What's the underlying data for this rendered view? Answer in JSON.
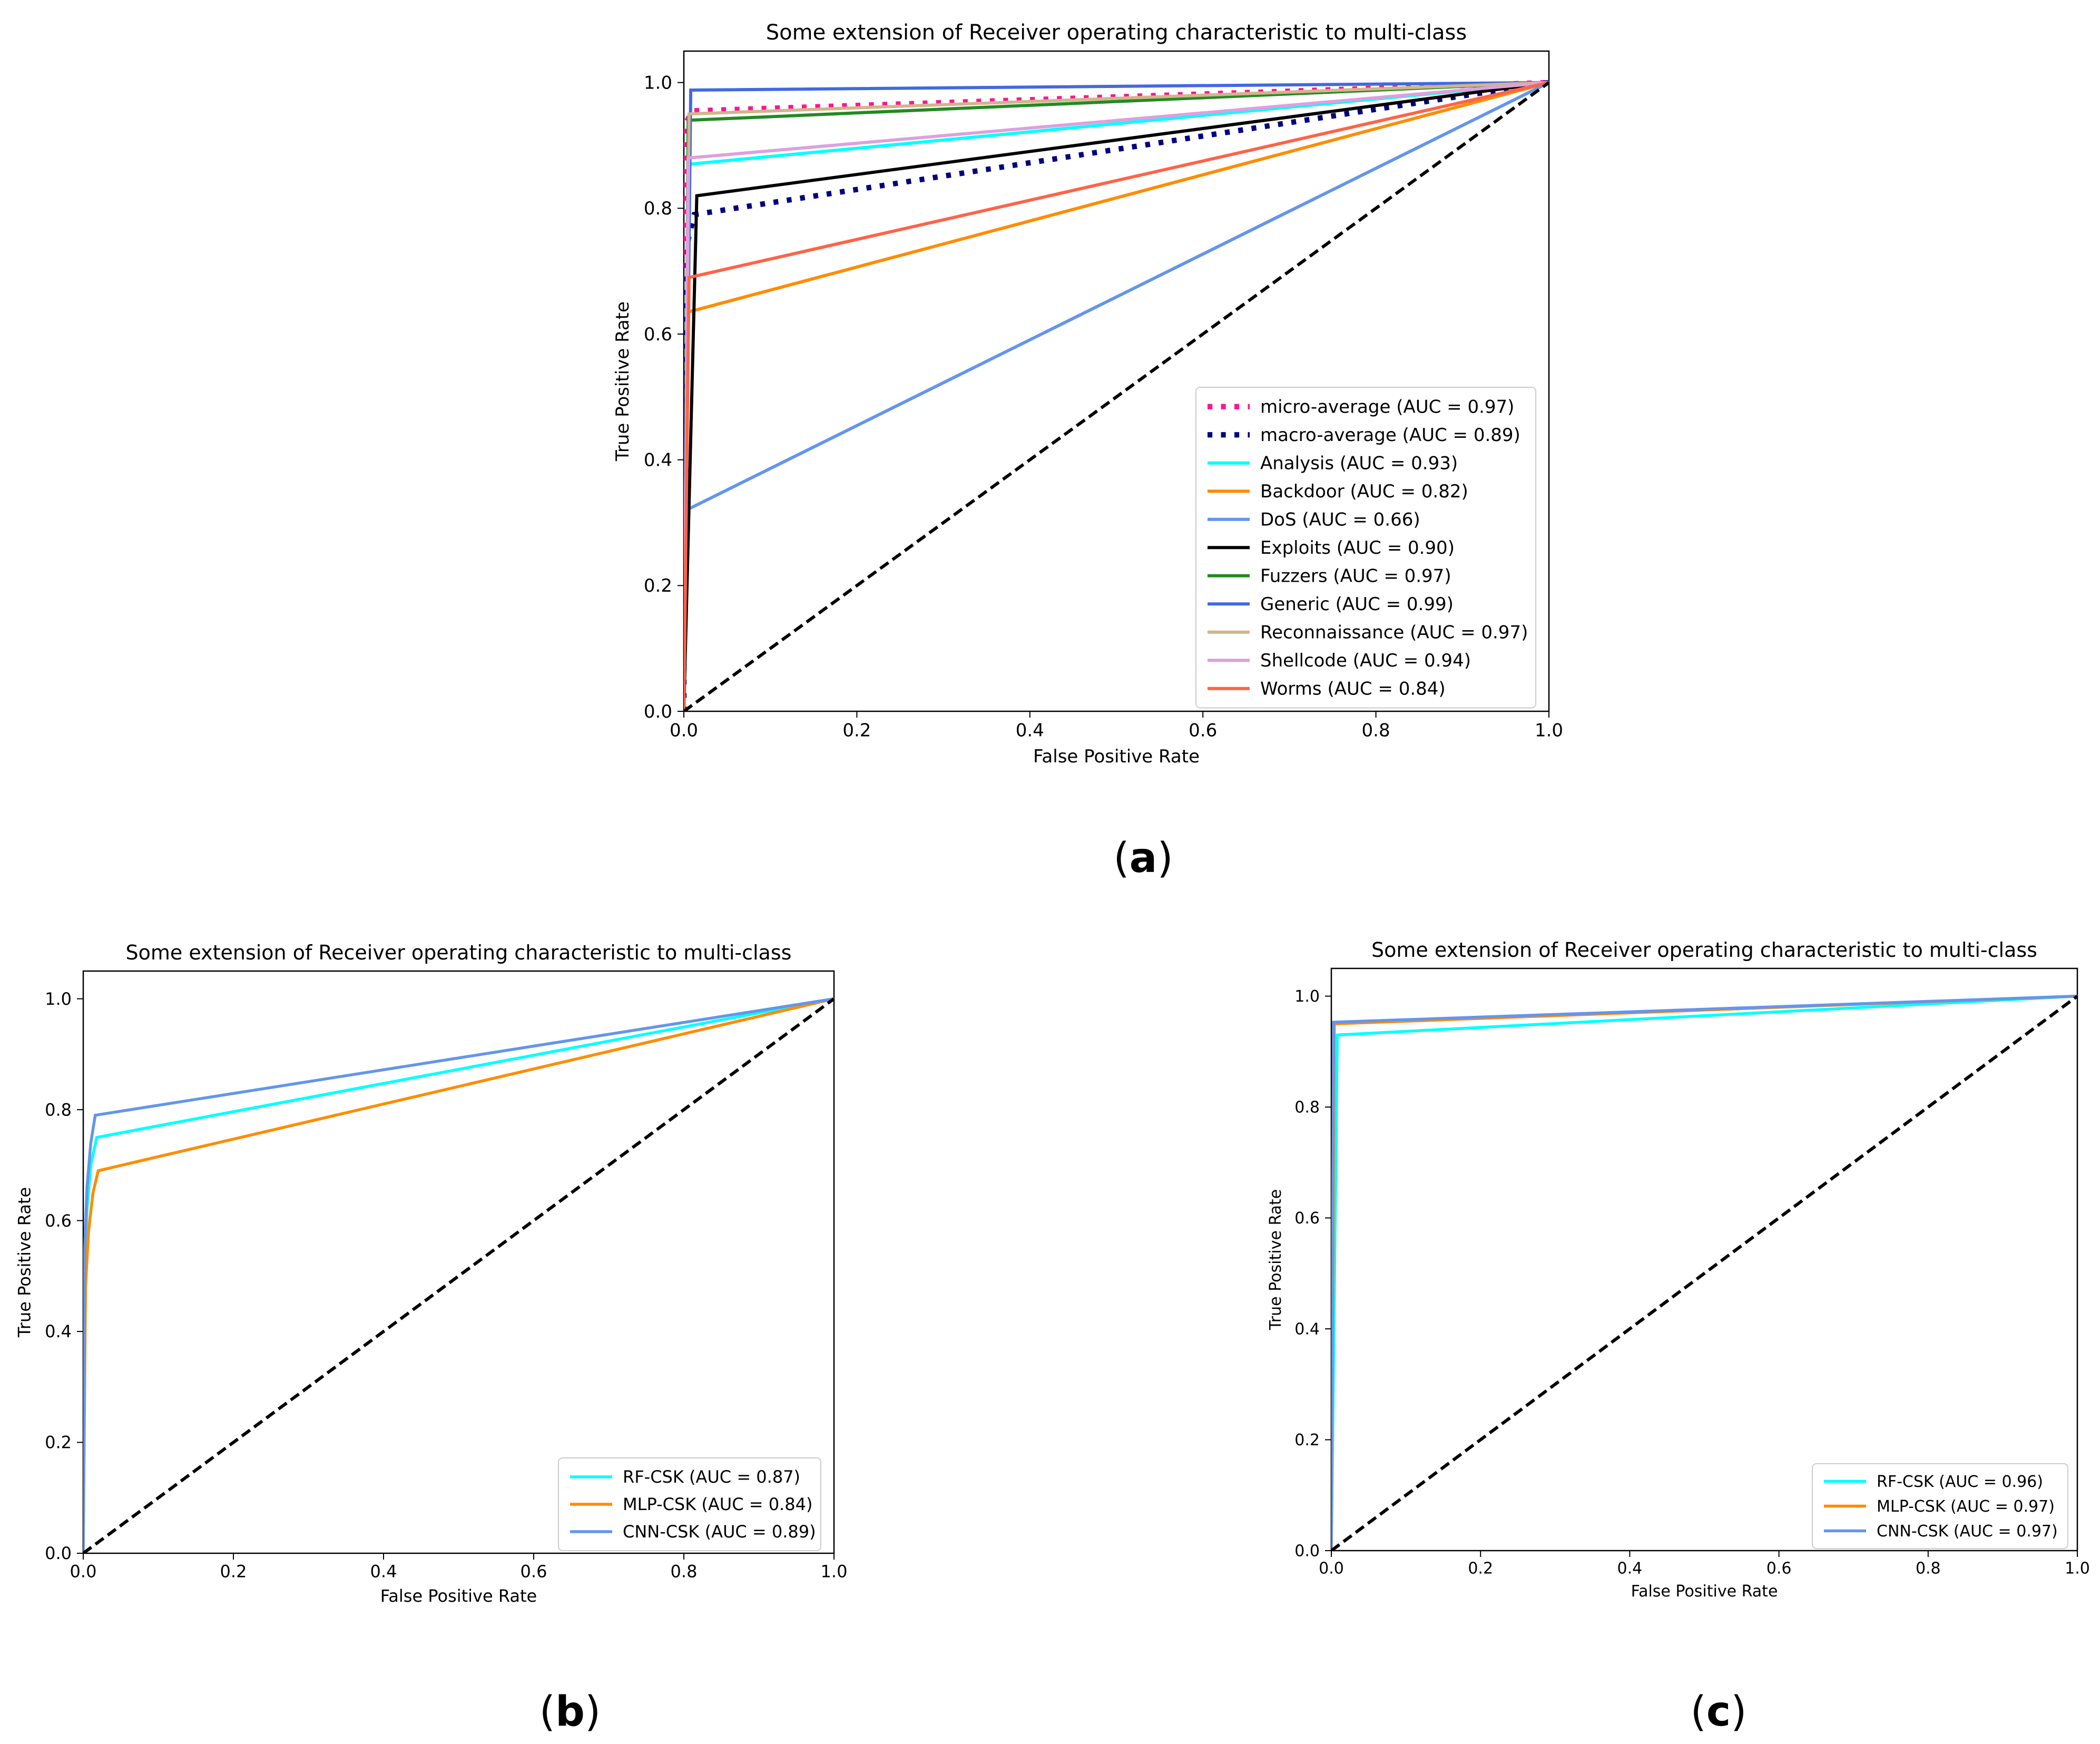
{
  "chart_data": [
    {
      "panel_label": "a",
      "type": "line",
      "title": "Some extension of Receiver operating characteristic to multi-class",
      "xlabel": "False Positive Rate",
      "ylabel": "True Positive Rate",
      "xlim": [
        0.0,
        1.0
      ],
      "ylim": [
        0.0,
        1.05
      ],
      "xticks": [
        "0.0",
        "0.2",
        "0.4",
        "0.6",
        "0.8",
        "1.0"
      ],
      "yticks": [
        "0.0",
        "0.2",
        "0.4",
        "0.6",
        "0.8",
        "1.0"
      ],
      "grid": false,
      "legend_position": "lower-right",
      "diagonal": {
        "x": [
          0,
          1
        ],
        "y": [
          0,
          1
        ],
        "color": "#000000",
        "style": "dashed"
      },
      "series": [
        {
          "name": "micro-average (AUC = 0.97)",
          "color": "#ff1493",
          "style": "dotted",
          "x": [
            0.0,
            0.0,
            0.01,
            1.0
          ],
          "y": [
            0.0,
            0.93,
            0.955,
            1.0
          ]
        },
        {
          "name": "macro-average (AUC = 0.89)",
          "color": "#000080",
          "style": "dotted",
          "x": [
            0.0,
            0.0,
            0.005,
            0.012,
            1.0
          ],
          "y": [
            0.0,
            0.55,
            0.75,
            0.79,
            1.0
          ]
        },
        {
          "name": "Analysis (AUC = 0.93)",
          "color": "#00ffff",
          "style": "solid",
          "x": [
            0.0,
            0.005,
            1.0
          ],
          "y": [
            0.0,
            0.87,
            1.0
          ]
        },
        {
          "name": "Backdoor (AUC = 0.82)",
          "color": "#ff8c00",
          "style": "solid",
          "x": [
            0.0,
            0.005,
            1.0
          ],
          "y": [
            0.0,
            0.635,
            1.0
          ]
        },
        {
          "name": "DoS (AUC = 0.66)",
          "color": "#6495ed",
          "style": "solid",
          "x": [
            0.0,
            0.003,
            1.0
          ],
          "y": [
            0.0,
            0.32,
            1.0
          ]
        },
        {
          "name": "Exploits (AUC = 0.90)",
          "color": "#000000",
          "style": "solid",
          "x": [
            0.0,
            0.015,
            1.0
          ],
          "y": [
            0.0,
            0.82,
            1.0
          ]
        },
        {
          "name": "Fuzzers (AUC = 0.97)",
          "color": "#228b22",
          "style": "solid",
          "x": [
            0.0,
            0.005,
            1.0
          ],
          "y": [
            0.0,
            0.94,
            1.0
          ]
        },
        {
          "name": "Generic (AUC = 0.99)",
          "color": "#4169e1",
          "style": "solid",
          "x": [
            0.0,
            0.008,
            1.0
          ],
          "y": [
            0.0,
            0.988,
            1.0
          ]
        },
        {
          "name": "Reconnaissance (AUC = 0.97)",
          "color": "#d2b48c",
          "style": "solid",
          "x": [
            0.0,
            0.006,
            1.0
          ],
          "y": [
            0.0,
            0.95,
            1.0
          ]
        },
        {
          "name": "Shellcode (AUC = 0.94)",
          "color": "#dda0dd",
          "style": "solid",
          "x": [
            0.0,
            0.005,
            1.0
          ],
          "y": [
            0.0,
            0.88,
            1.0
          ]
        },
        {
          "name": "Worms (AUC = 0.84)",
          "color": "#ff6347",
          "style": "solid",
          "x": [
            0.0,
            0.006,
            1.0
          ],
          "y": [
            0.0,
            0.69,
            1.0
          ]
        }
      ]
    },
    {
      "panel_label": "b",
      "type": "line",
      "title": "Some extension of Receiver operating characteristic to multi-class",
      "xlabel": "False Positive Rate",
      "ylabel": "True Positive Rate",
      "xlim": [
        0.0,
        1.0
      ],
      "ylim": [
        0.0,
        1.05
      ],
      "xticks": [
        "0.0",
        "0.2",
        "0.4",
        "0.6",
        "0.8",
        "1.0"
      ],
      "yticks": [
        "0.0",
        "0.2",
        "0.4",
        "0.6",
        "0.8",
        "1.0"
      ],
      "grid": false,
      "legend_position": "lower-right",
      "diagonal": {
        "x": [
          0,
          1
        ],
        "y": [
          0,
          1
        ],
        "color": "#000000",
        "style": "dashed"
      },
      "series": [
        {
          "name": "RF-CSK (AUC = 0.87)",
          "color": "#00ffff",
          "style": "solid",
          "x": [
            0.0,
            0.002,
            0.005,
            0.01,
            0.018,
            1.0
          ],
          "y": [
            0.0,
            0.5,
            0.62,
            0.7,
            0.75,
            1.0
          ]
        },
        {
          "name": "MLP-CSK (AUC = 0.84)",
          "color": "#ff8c00",
          "style": "solid",
          "x": [
            0.0,
            0.003,
            0.007,
            0.013,
            0.02,
            1.0
          ],
          "y": [
            0.0,
            0.48,
            0.58,
            0.65,
            0.69,
            1.0
          ]
        },
        {
          "name": "CNN-CSK (AUC = 0.89)",
          "color": "#6495ed",
          "style": "solid",
          "x": [
            0.0,
            0.002,
            0.005,
            0.01,
            0.016,
            1.0
          ],
          "y": [
            0.0,
            0.55,
            0.66,
            0.74,
            0.79,
            1.0
          ]
        }
      ]
    },
    {
      "panel_label": "c",
      "type": "line",
      "title": "Some extension of Receiver operating characteristic to multi-class",
      "xlabel": "False Positive Rate",
      "ylabel": "True Positive Rate",
      "xlim": [
        0.0,
        1.0
      ],
      "ylim": [
        0.0,
        1.05
      ],
      "xticks": [
        "0.0",
        "0.2",
        "0.4",
        "0.6",
        "0.8",
        "1.0"
      ],
      "yticks": [
        "0.0",
        "0.2",
        "0.4",
        "0.6",
        "0.8",
        "1.0"
      ],
      "grid": false,
      "legend_position": "lower-right",
      "diagonal": {
        "x": [
          0,
          1
        ],
        "y": [
          0,
          1
        ],
        "color": "#000000",
        "style": "dashed"
      },
      "series": [
        {
          "name": "RF-CSK (AUC = 0.96)",
          "color": "#00ffff",
          "style": "solid",
          "x": [
            0.0,
            0.008,
            1.0
          ],
          "y": [
            0.0,
            0.93,
            1.0
          ]
        },
        {
          "name": "MLP-CSK (AUC = 0.97)",
          "color": "#ff8c00",
          "style": "solid",
          "x": [
            0.0,
            0.004,
            1.0
          ],
          "y": [
            0.0,
            0.95,
            1.0
          ]
        },
        {
          "name": "CNN-CSK (AUC = 0.97)",
          "color": "#6495ed",
          "style": "solid",
          "x": [
            0.0,
            0.003,
            1.0
          ],
          "y": [
            0.0,
            0.953,
            1.0
          ]
        }
      ]
    }
  ]
}
